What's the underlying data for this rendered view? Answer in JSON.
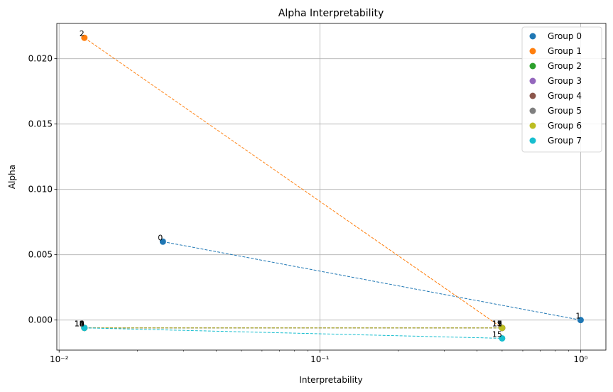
{
  "chart_data": {
    "type": "scatter",
    "title": "Alpha Interpretability",
    "xlabel": "Interpretability",
    "ylabel": "Alpha",
    "xscale": "log",
    "xlim": [
      0.0098,
      1.25
    ],
    "ylim": [
      -0.0023,
      0.0227
    ],
    "grid": true,
    "legend_position": "top-right",
    "x_ticks": [
      {
        "value": 0.01,
        "label": "10⁻²"
      },
      {
        "value": 0.1,
        "label": "10⁻¹"
      },
      {
        "value": 1,
        "label": "10⁰"
      }
    ],
    "y_ticks": [
      {
        "value": 0.0,
        "label": "0.000"
      },
      {
        "value": 0.005,
        "label": "0.005"
      },
      {
        "value": 0.01,
        "label": "0.010"
      },
      {
        "value": 0.015,
        "label": "0.015"
      },
      {
        "value": 0.02,
        "label": "0.020"
      }
    ],
    "series": [
      {
        "name": "Group 0",
        "color": "#1f77b4",
        "points": [
          {
            "x": 0.025,
            "y": 0.006,
            "label": "0"
          },
          {
            "x": 1.0,
            "y": 0.0,
            "label": "1"
          }
        ]
      },
      {
        "name": "Group 1",
        "color": "#ff7f0e",
        "points": [
          {
            "x": 0.0125,
            "y": 0.0216,
            "label": "2"
          },
          {
            "x": 0.5,
            "y": -0.0006,
            "label": "3"
          }
        ]
      },
      {
        "name": "Group 2",
        "color": "#2ca02c",
        "points": [
          {
            "x": 0.0125,
            "y": -0.0006,
            "label": "4"
          },
          {
            "x": 0.5,
            "y": -0.0006,
            "label": "5"
          }
        ]
      },
      {
        "name": "Group 3",
        "color": "#9467bd",
        "points": [
          {
            "x": 0.0125,
            "y": -0.0006,
            "label": "6"
          },
          {
            "x": 0.5,
            "y": -0.0006,
            "label": "7"
          }
        ]
      },
      {
        "name": "Group 4",
        "color": "#8c564b",
        "points": [
          {
            "x": 0.0125,
            "y": -0.0006,
            "label": "8"
          },
          {
            "x": 0.5,
            "y": -0.0006,
            "label": "9"
          }
        ]
      },
      {
        "name": "Group 5",
        "color": "#7f7f7f",
        "points": [
          {
            "x": 0.0125,
            "y": -0.0006,
            "label": "10"
          },
          {
            "x": 0.5,
            "y": -0.0006,
            "label": "11"
          }
        ]
      },
      {
        "name": "Group 6",
        "color": "#bcbd22",
        "points": [
          {
            "x": 0.0125,
            "y": -0.0006,
            "label": "12"
          },
          {
            "x": 0.5,
            "y": -0.0006,
            "label": "13"
          }
        ]
      },
      {
        "name": "Group 7",
        "color": "#17becf",
        "points": [
          {
            "x": 0.0125,
            "y": -0.0006,
            "label": "14"
          },
          {
            "x": 0.5,
            "y": -0.0014,
            "label": "15"
          }
        ]
      }
    ]
  }
}
